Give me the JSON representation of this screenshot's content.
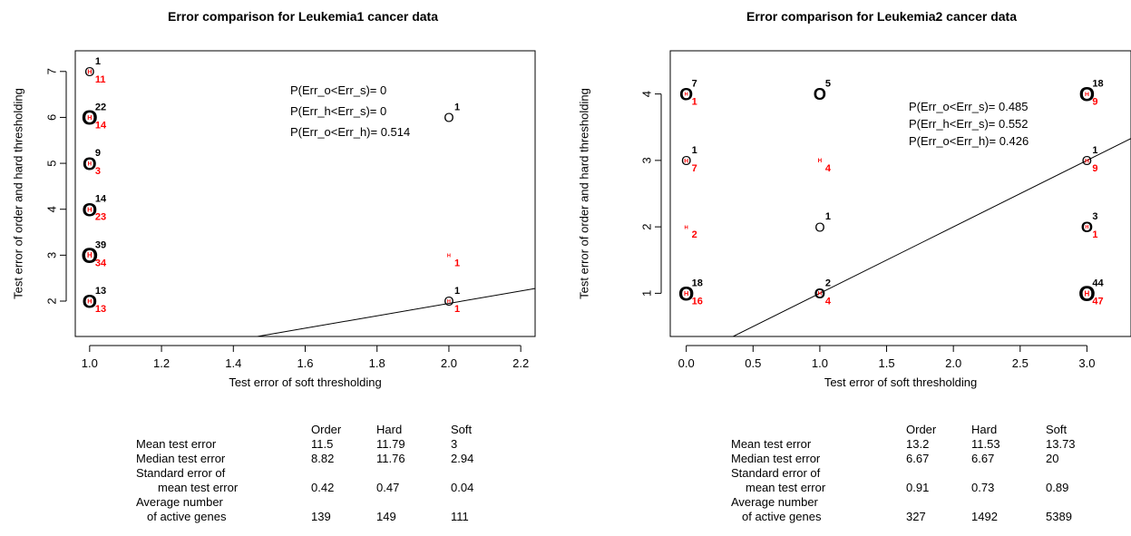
{
  "panels": [
    {
      "title": "Error comparison for Leukemia1 cancer data",
      "prob_lines": [
        "P(Err_o<Err_s)= 0",
        "P(Err_h<Err_s)= 0",
        "P(Err_o<Err_h)= 0.514"
      ],
      "table": {
        "headers": [
          "Order",
          "Hard",
          "Soft"
        ],
        "rows": [
          {
            "label": "Mean test error",
            "values": [
              "11.5",
              "11.79",
              "3"
            ]
          },
          {
            "label": "Median test error",
            "values": [
              "8.82",
              "11.76",
              "2.94"
            ]
          },
          {
            "label": "Standard error of",
            "values": [
              "",
              "",
              ""
            ]
          },
          {
            "label": "mean test error",
            "indent": true,
            "values": [
              "0.42",
              "0.47",
              "0.04"
            ]
          },
          {
            "label": "Average number",
            "values": [
              "",
              "",
              ""
            ]
          },
          {
            "label": "of active genes",
            "indent": true,
            "values": [
              "139",
              "149",
              "111"
            ]
          }
        ]
      }
    },
    {
      "title": "Error comparison for Leukemia2 cancer data",
      "prob_lines": [
        "P(Err_o<Err_s)= 0.485",
        "P(Err_h<Err_s)= 0.552",
        "P(Err_o<Err_h)= 0.426"
      ],
      "table": {
        "headers": [
          "Order",
          "Hard",
          "Soft"
        ],
        "rows": [
          {
            "label": "Mean test error",
            "values": [
              "13.2",
              "11.53",
              "13.73"
            ]
          },
          {
            "label": "Median test error",
            "values": [
              "6.67",
              "6.67",
              "20"
            ]
          },
          {
            "label": "Standard error of",
            "values": [
              "",
              "",
              ""
            ]
          },
          {
            "label": "mean test error",
            "indent": true,
            "values": [
              "0.91",
              "0.73",
              "0.89"
            ]
          },
          {
            "label": "Average number",
            "values": [
              "",
              "",
              ""
            ]
          },
          {
            "label": "of active genes",
            "indent": true,
            "values": [
              "327",
              "1492",
              "5389"
            ]
          }
        ]
      }
    }
  ],
  "chart_data": [
    {
      "type": "scatter",
      "title": "Error comparison for Leukemia1 cancer data",
      "xlabel": "Test error of soft thresholding",
      "ylabel": "Test error of order and hard thresholding",
      "xlim": [
        0.96,
        2.24
      ],
      "ylim": [
        1.23,
        7.45
      ],
      "xticks": [
        1.0,
        1.2,
        1.4,
        1.6,
        1.8,
        2.0,
        2.2
      ],
      "xtick_labels": [
        "1.0",
        "1.2",
        "1.4",
        "1.6",
        "1.8",
        "2.0",
        "2.2"
      ],
      "yticks": [
        2,
        3,
        4,
        5,
        6,
        7
      ],
      "ytick_labels": [
        "2",
        "3",
        "4",
        "5",
        "6",
        "7"
      ],
      "reference_line": {
        "intercept": -0.75,
        "slope": 1.35
      },
      "marker_colors": {
        "order": "#000000",
        "hard": "#ff0000"
      },
      "series": [
        {
          "name": "O",
          "points": [
            {
              "x": 1,
              "y": 7,
              "count": 1
            },
            {
              "x": 1,
              "y": 6,
              "count": 22
            },
            {
              "x": 1,
              "y": 5,
              "count": 9
            },
            {
              "x": 1,
              "y": 4,
              "count": 14
            },
            {
              "x": 1,
              "y": 3,
              "count": 39
            },
            {
              "x": 1,
              "y": 2,
              "count": 13
            },
            {
              "x": 2,
              "y": 6,
              "count": 1
            },
            {
              "x": 2,
              "y": 2,
              "count": 1
            }
          ]
        },
        {
          "name": "H",
          "points": [
            {
              "x": 1,
              "y": 7,
              "count": 11
            },
            {
              "x": 1,
              "y": 6,
              "count": 14
            },
            {
              "x": 1,
              "y": 5,
              "count": 3
            },
            {
              "x": 1,
              "y": 4,
              "count": 23
            },
            {
              "x": 1,
              "y": 3,
              "count": 34
            },
            {
              "x": 1,
              "y": 2,
              "count": 13
            },
            {
              "x": 2,
              "y": 3,
              "count": 1
            },
            {
              "x": 2,
              "y": 2,
              "count": 1
            }
          ]
        }
      ]
    },
    {
      "type": "scatter",
      "title": "Error comparison for Leukemia2 cancer data",
      "xlabel": "Test error of soft thresholding",
      "ylabel": "Test error of order and hard thresholding",
      "xlim": [
        -0.12,
        3.33
      ],
      "ylim": [
        0.35,
        4.65
      ],
      "xticks": [
        0.0,
        0.5,
        1.0,
        1.5,
        2.0,
        2.5,
        3.0
      ],
      "xtick_labels": [
        "0.0",
        "0.5",
        "1.0",
        "1.5",
        "2.0",
        "2.5",
        "3.0"
      ],
      "yticks": [
        1,
        2,
        3,
        4
      ],
      "ytick_labels": [
        "1",
        "2",
        "3",
        "4"
      ],
      "reference_line": {
        "intercept": 0,
        "slope": 1
      },
      "marker_colors": {
        "order": "#000000",
        "hard": "#ff0000"
      },
      "series": [
        {
          "name": "O",
          "points": [
            {
              "x": 0,
              "y": 4,
              "count": 7
            },
            {
              "x": 0,
              "y": 3,
              "count": 1
            },
            {
              "x": 0,
              "y": 1,
              "count": 18
            },
            {
              "x": 1,
              "y": 4,
              "count": 5
            },
            {
              "x": 1,
              "y": 2,
              "count": 1
            },
            {
              "x": 1,
              "y": 1,
              "count": 2
            },
            {
              "x": 3,
              "y": 4,
              "count": 18
            },
            {
              "x": 3,
              "y": 3,
              "count": 1
            },
            {
              "x": 3,
              "y": 2,
              "count": 3
            },
            {
              "x": 3,
              "y": 1,
              "count": 44
            }
          ]
        },
        {
          "name": "H",
          "points": [
            {
              "x": 0,
              "y": 4,
              "count": 1
            },
            {
              "x": 0,
              "y": 3,
              "count": 7
            },
            {
              "x": 0,
              "y": 2,
              "count": 2
            },
            {
              "x": 0,
              "y": 1,
              "count": 16
            },
            {
              "x": 1,
              "y": 3,
              "count": 4
            },
            {
              "x": 1,
              "y": 1,
              "count": 4
            },
            {
              "x": 3,
              "y": 4,
              "count": 9
            },
            {
              "x": 3,
              "y": 3,
              "count": 9
            },
            {
              "x": 3,
              "y": 2,
              "count": 1
            },
            {
              "x": 3,
              "y": 1,
              "count": 47
            }
          ]
        }
      ]
    }
  ]
}
